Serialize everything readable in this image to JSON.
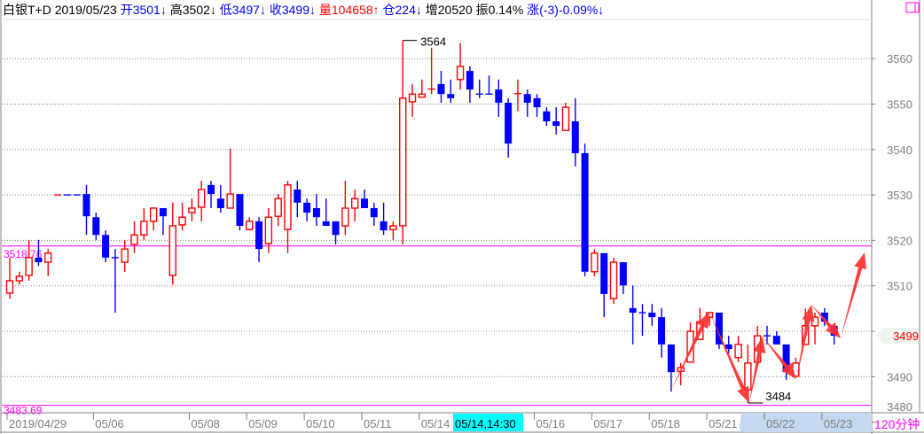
{
  "header": {
    "instrument": "白银T+D",
    "date": "2019/05/23",
    "items": [
      {
        "label": "开",
        "value": "3501",
        "arrow": "↓",
        "color": "#0000ff"
      },
      {
        "label": "高",
        "value": "3502",
        "arrow": "↓",
        "color": "#000000"
      },
      {
        "label": "低",
        "value": "3497",
        "arrow": "↓",
        "color": "#0000ff"
      },
      {
        "label": "收",
        "value": "3499",
        "arrow": "↓",
        "color": "#0000ff"
      },
      {
        "label": "量",
        "value": "104658",
        "arrow": "↑",
        "color": "#ff0000"
      },
      {
        "label": "仓",
        "value": "224",
        "arrow": "↓",
        "color": "#0000ff"
      },
      {
        "label": "增",
        "value": "20520",
        "arrow": "",
        "color": "#000000"
      },
      {
        "label": "振",
        "value": "0.14%",
        "arrow": "",
        "color": "#000000"
      },
      {
        "label": "涨",
        "value": "(-3)-0.09%",
        "arrow": "↓",
        "color": "#0000ff"
      }
    ]
  },
  "chart_data": {
    "type": "candlestick",
    "period": "120分钟",
    "ylim": [
      3480,
      3566
    ],
    "yticks": [
      3480,
      3490,
      3500,
      3510,
      3520,
      3530,
      3540,
      3550,
      3560
    ],
    "grid": true,
    "colors": {
      "up": "#ff0000",
      "down": "#0000ff",
      "ref_line": "#ff00ff"
    },
    "x_labels": [
      "2019/04/29",
      "05/06",
      "05/08",
      "05/09",
      "05/10",
      "05/11",
      "05/14",
      "05/16",
      "05/17",
      "05/18",
      "05/21",
      "05/22",
      "05/23"
    ],
    "x_label_candle_index": [
      0,
      9,
      19,
      25,
      31,
      37,
      43,
      55,
      61,
      67,
      73,
      79,
      85
    ],
    "cursor_label": "05/14,14:30",
    "high_mark": {
      "label": "3564",
      "value": 3564,
      "index": 41
    },
    "low_mark": {
      "label": "3484",
      "value": 3484.2,
      "index": 77
    },
    "ref_lines": [
      {
        "label": "3518.76",
        "value": 3518.76
      },
      {
        "label": "3483.69",
        "value": 3483.69
      }
    ],
    "last_price": {
      "label": "3499",
      "value": 3499
    },
    "candles_ohlc": [
      [
        3508.4,
        3516.2,
        3507.2,
        3511.1
      ],
      [
        3511.1,
        3513.1,
        3510.3,
        3512.1
      ],
      [
        3512.3,
        3520.1,
        3511.1,
        3516.2
      ],
      [
        3516.2,
        3520.1,
        3514.4,
        3515.2
      ],
      [
        3515.2,
        3518.1,
        3512.1,
        3517.2
      ],
      [
        3530,
        3530,
        3530,
        3530.01
      ],
      [
        3530,
        3530,
        3530,
        3529.99
      ],
      [
        3530,
        3530,
        3530,
        3529.99
      ],
      [
        3530.2,
        3532.2,
        3521.2,
        3525.3
      ],
      [
        3525.1,
        3526.1,
        3520.1,
        3521.2
      ],
      [
        3521.2,
        3522.2,
        3515.2,
        3516.2
      ],
      [
        3516.2,
        3518.1,
        3504.1,
        3516.1
      ],
      [
        3515.2,
        3520.1,
        3513.1,
        3518.1
      ],
      [
        3519.1,
        3524.2,
        3517.2,
        3521.2
      ],
      [
        3521.2,
        3527.1,
        3520.1,
        3524.2
      ],
      [
        3524.2,
        3527.1,
        3522.2,
        3527.1
      ],
      [
        3527.1,
        3527.1,
        3521.2,
        3525.3
      ],
      [
        3512.3,
        3528.3,
        3510.3,
        3523.2
      ],
      [
        3523.4,
        3528.3,
        3522.2,
        3525.1
      ],
      [
        3526.1,
        3529.2,
        3524.2,
        3527.1
      ],
      [
        3527.3,
        3533.1,
        3524.2,
        3531.2
      ],
      [
        3532.2,
        3533.1,
        3527.1,
        3530.2
      ],
      [
        3529.2,
        3532.2,
        3526.1,
        3527.1
      ],
      [
        3527.1,
        3540.2,
        3527.1,
        3530.2
      ],
      [
        3530.2,
        3530.2,
        3522.2,
        3523.2
      ],
      [
        3522.4,
        3525.1,
        3522.2,
        3524.2
      ],
      [
        3524.2,
        3525.1,
        3515.2,
        3518.1
      ],
      [
        3519.3,
        3527.1,
        3517.2,
        3525.1
      ],
      [
        3525.3,
        3530.2,
        3523.2,
        3529.2
      ],
      [
        3522.4,
        3533.1,
        3517.2,
        3532.2
      ],
      [
        3531.2,
        3533.1,
        3525.1,
        3528.3
      ],
      [
        3528.3,
        3529.2,
        3524.2,
        3526.1
      ],
      [
        3527.1,
        3530.2,
        3523.2,
        3525.1
      ],
      [
        3524.2,
        3529.2,
        3523.2,
        3523.2
      ],
      [
        3524.2,
        3524.2,
        3519.1,
        3521.2
      ],
      [
        3523.2,
        3533.1,
        3521.2,
        3527.1
      ],
      [
        3527.1,
        3531.2,
        3524.2,
        3529.2
      ],
      [
        3529.2,
        3531.2,
        3527.1,
        3527.1
      ],
      [
        3527.1,
        3528.3,
        3523.2,
        3525.1
      ],
      [
        3524.2,
        3528.3,
        3521.2,
        3522.2
      ],
      [
        3522.4,
        3524.2,
        3520.1,
        3523.2
      ],
      [
        3523.2,
        3564,
        3519.1,
        3551.3
      ],
      [
        3550.5,
        3554.4,
        3547.2,
        3552.2
      ],
      [
        3551.5,
        3555.4,
        3551.5,
        3552.2
      ],
      [
        3553.2,
        3562.4,
        3552.2,
        3553.3
      ],
      [
        3554.4,
        3557.3,
        3550.3,
        3552.2
      ],
      [
        3552.2,
        3555.4,
        3550.3,
        3551.3
      ],
      [
        3555.4,
        3563.4,
        3553.2,
        3558.3
      ],
      [
        3557.3,
        3558.3,
        3550.3,
        3553.2
      ],
      [
        3552.2,
        3555.4,
        3551.3,
        3552.1
      ],
      [
        3552.2,
        3556.3,
        3552.2,
        3552.1
      ],
      [
        3553.2,
        3555.4,
        3547.2,
        3550.3
      ],
      [
        3550.3,
        3551.3,
        3538.2,
        3541.3
      ],
      [
        3552.2,
        3555.4,
        3548.4,
        3552.3
      ],
      [
        3552.2,
        3553.2,
        3547.2,
        3550.3
      ],
      [
        3551.3,
        3552.2,
        3547.2,
        3549.3
      ],
      [
        3548.4,
        3549.3,
        3545.2,
        3546.2
      ],
      [
        3546.2,
        3549.3,
        3543.3,
        3545.2
      ],
      [
        3544.2,
        3550.3,
        3544.2,
        3549.3
      ],
      [
        3546.2,
        3551.3,
        3536.3,
        3539.2
      ],
      [
        3539.2,
        3541.3,
        3512.1,
        3513.1
      ],
      [
        3513.1,
        3518.1,
        3512.1,
        3517.2
      ],
      [
        3517.2,
        3517.2,
        3503.1,
        3508.2
      ],
      [
        3507.2,
        3516.2,
        3506.0,
        3515.2
      ],
      [
        3515.2,
        3515.2,
        3508.2,
        3510.1
      ],
      [
        3505.1,
        3510.1,
        3497.1,
        3504.1
      ],
      [
        3504.1,
        3506.0,
        3499.0,
        3504.0
      ],
      [
        3504.1,
        3506.0,
        3501.2,
        3503.1
      ],
      [
        3503.1,
        3505.1,
        3494.2,
        3497.1
      ],
      [
        3497.1,
        3497.1,
        3486.7,
        3491.0
      ],
      [
        3491.2,
        3493.0,
        3488.1,
        3492.0
      ],
      [
        3493.2,
        3501.9,
        3493.2,
        3500.0
      ],
      [
        3498.2,
        3505.1,
        3498.2,
        3502.1
      ],
      [
        3503.1,
        3504.1,
        3501.2,
        3504.1
      ],
      [
        3504.1,
        3504.1,
        3496.1,
        3497.1
      ],
      [
        3497.1,
        3499.0,
        3495.1,
        3496.1
      ],
      [
        3494.2,
        3499.0,
        3493.2,
        3497.1
      ],
      [
        3487.1,
        3497.1,
        3484.2,
        3493.0
      ],
      [
        3493.2,
        3501.2,
        3493.2,
        3499.0
      ],
      [
        3499.0,
        3501.2,
        3497.1,
        3498.9
      ],
      [
        3499.0,
        3500.0,
        3497.1,
        3497.1
      ],
      [
        3497.1,
        3497.1,
        3489.3,
        3491.0
      ],
      [
        3490.1,
        3494.2,
        3490.1,
        3493.0
      ],
      [
        3497.1,
        3505.0,
        3497.1,
        3501.2
      ],
      [
        3501.2,
        3504.1,
        3497.1,
        3503.1
      ],
      [
        3504.1,
        3505.1,
        3501.2,
        3502.1
      ],
      [
        3501.2,
        3501.2,
        3497.1,
        3499.0
      ]
    ]
  }
}
